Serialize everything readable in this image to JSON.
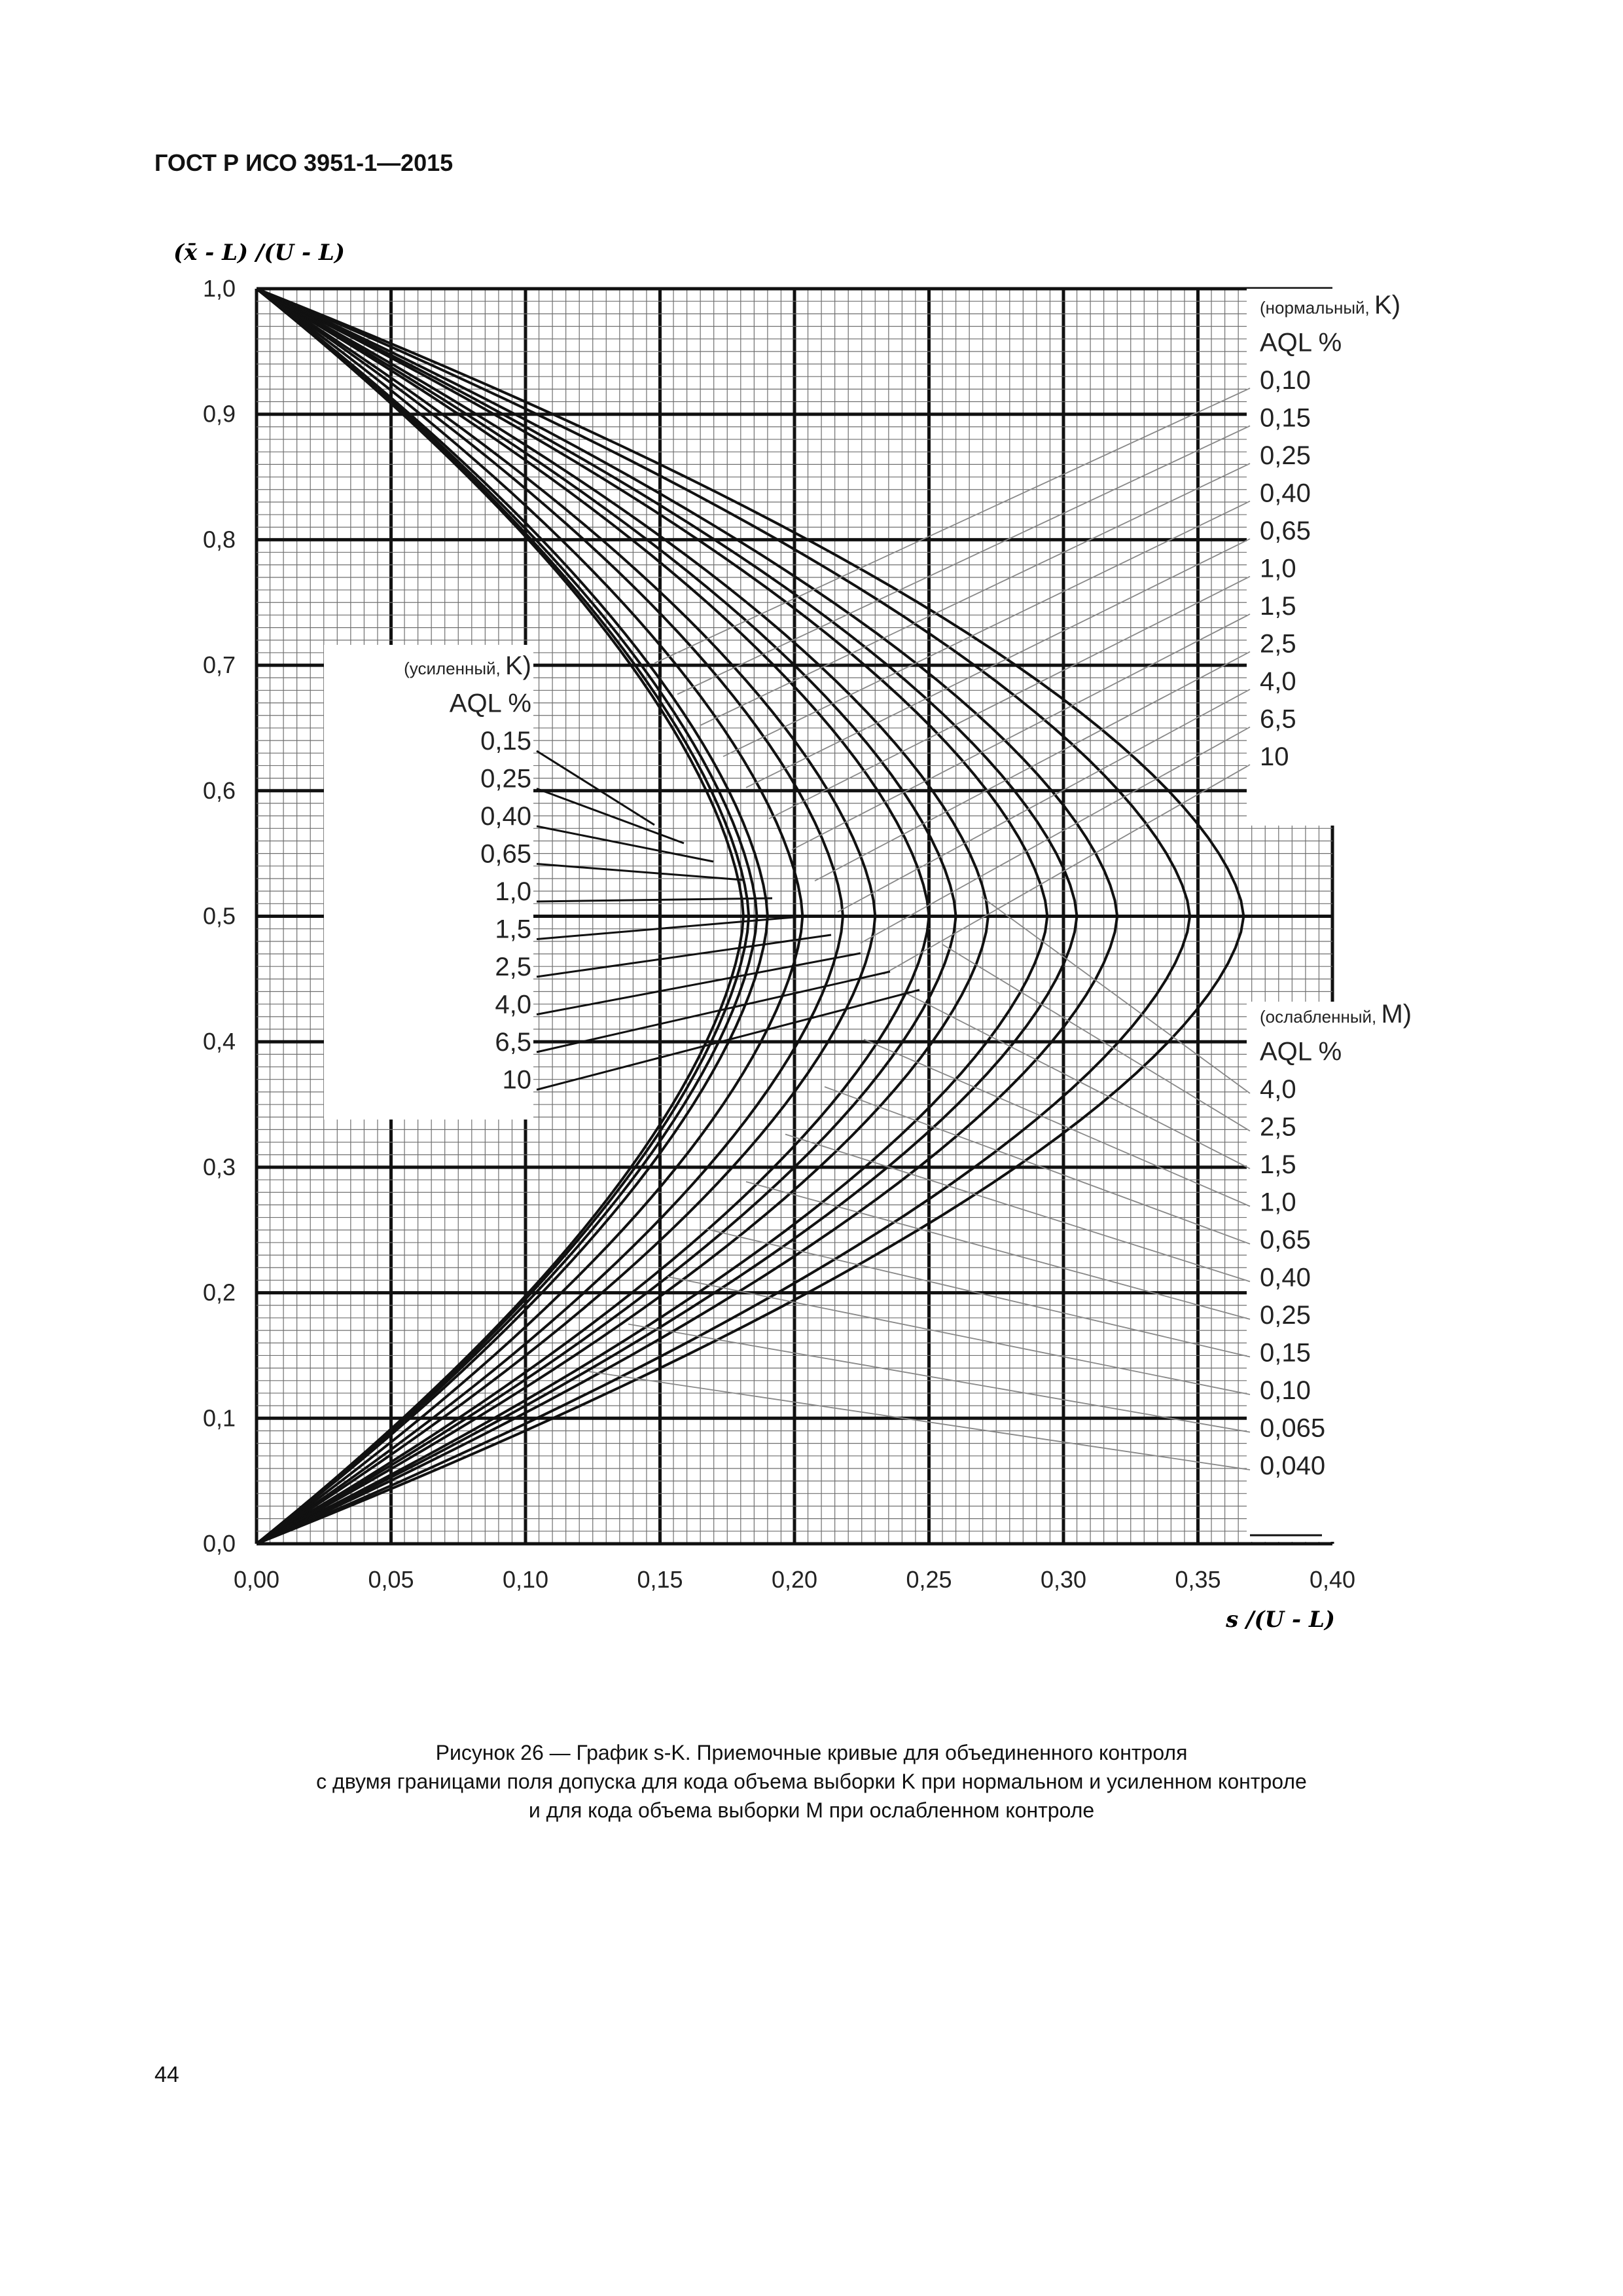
{
  "header": {
    "standard": "ГОСТ Р ИСО 3951-1—2015"
  },
  "caption": {
    "line1": "Рисунок 26 — График s-K. Приемочные кривые для объединенного контроля",
    "line2": "с двумя границами поля допуска для кода объема выборки K при нормальном и усиленном контроле",
    "line3": "и для кода объема выборки M при ослабленном контроле"
  },
  "page_number": "44",
  "chart_data": {
    "type": "line",
    "title": "",
    "xlabel": "s /(U -  L)",
    "ylabel": "(x̄ -  L) /(U -  L)",
    "xlim": [
      0,
      0.4
    ],
    "ylim": [
      0,
      1.0
    ],
    "x_ticks": [
      "0,00",
      "0,05",
      "0,10",
      "0,15",
      "0,20",
      "0,25",
      "0,30",
      "0,35",
      "0,40"
    ],
    "y_ticks": [
      "0,0",
      "0,1",
      "0,2",
      "0,3",
      "0,4",
      "0,5",
      "0,6",
      "0,7",
      "0,8",
      "0,9",
      "1,0"
    ],
    "grid": true,
    "legend_normal": {
      "heading_open": "(",
      "heading_name": "нормальный,",
      "heading_code": "K)",
      "aql_label": "AQL %",
      "placement": "right-top",
      "entries": [
        "0,10",
        "0,15",
        "0,25",
        "0,40",
        "0,65",
        "1,0",
        "1,5",
        "2,5",
        "4,0",
        "6,5",
        "10"
      ]
    },
    "legend_tightened": {
      "heading_open": "(",
      "heading_name": "усиленный,",
      "heading_code": "K)",
      "aql_label": "AQL %",
      "placement": "left-middle",
      "entries": [
        "0,15",
        "0,25",
        "0,40",
        "0,65",
        "1,0",
        "1,5",
        "2,5",
        "4,0",
        "6,5",
        "10"
      ]
    },
    "legend_reduced": {
      "heading_open": "(",
      "heading_name": "ослабленный,",
      "heading_code": "M)",
      "aql_label": "AQL %",
      "placement": "right-bottom",
      "entries": [
        "4,0",
        "2,5",
        "1,5",
        "1,0",
        "0,65",
        "0,40",
        "0,25",
        "0,15",
        "0,10",
        "0,065",
        "0,040"
      ]
    },
    "series": [
      {
        "max_s": 0.181
      },
      {
        "max_s": 0.183
      },
      {
        "max_s": 0.186
      },
      {
        "max_s": 0.19
      },
      {
        "max_s": 0.203
      },
      {
        "max_s": 0.218
      },
      {
        "max_s": 0.23
      },
      {
        "max_s": 0.25
      },
      {
        "max_s": 0.26
      },
      {
        "max_s": 0.272
      },
      {
        "max_s": 0.294
      },
      {
        "max_s": 0.305
      },
      {
        "max_s": 0.32
      },
      {
        "max_s": 0.347
      },
      {
        "max_s": 0.367
      }
    ],
    "colors": {
      "curve": "#111111",
      "grid": "#6f6f6f",
      "frame": "#111111",
      "leader": "#888888"
    }
  }
}
